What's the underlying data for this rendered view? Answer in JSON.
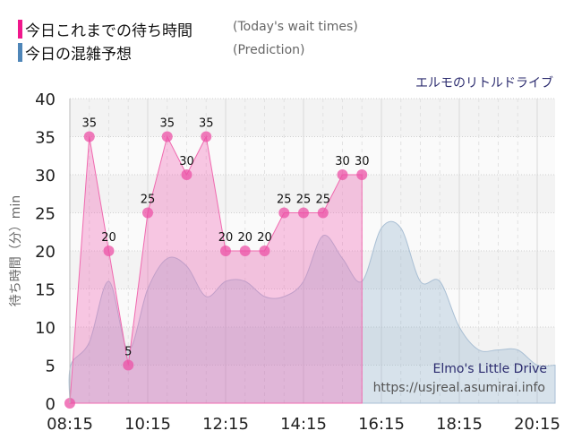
{
  "legend": {
    "items": [
      {
        "label_ja": "今日これまでの待ち時間",
        "label_en": "(Today's wait times)",
        "color": "#f0188c"
      },
      {
        "label_ja": "今日の混雑予想",
        "label_en": "(Prediction)",
        "color": "#4f86b8"
      }
    ]
  },
  "subtitle": "エルモのリトルドライブ",
  "credits": {
    "name": "Elmo's Little Drive",
    "url": "https://usjreal.asumirai.info"
  },
  "chart_data": {
    "type": "area",
    "title": "エルモのリトルドライブ",
    "xlabel": "",
    "ylabel": "待ち時間（分）min",
    "ylim": [
      0,
      40
    ],
    "yticks": [
      0,
      5,
      10,
      15,
      20,
      25,
      30,
      35,
      40
    ],
    "xticks": [
      "08:15",
      "10:15",
      "12:15",
      "14:15",
      "16:15",
      "18:15",
      "20:15"
    ],
    "grid": true,
    "legend_position": "top-left",
    "series": [
      {
        "name": "今日これまでの待ち時間 (Today's wait times)",
        "color": "#f0188c",
        "x": [
          "08:15",
          "08:45",
          "09:15",
          "09:45",
          "10:15",
          "10:45",
          "11:15",
          "11:45",
          "12:15",
          "12:45",
          "13:15",
          "13:45",
          "14:15",
          "14:45",
          "15:15",
          "15:45"
        ],
        "values": [
          0,
          35,
          20,
          5,
          25,
          35,
          30,
          35,
          20,
          20,
          20,
          25,
          25,
          25,
          30,
          30
        ]
      },
      {
        "name": "今日の混雑予想 (Prediction)",
        "color": "#4f86b8",
        "x": [
          "08:15",
          "08:45",
          "09:15",
          "09:45",
          "10:15",
          "10:45",
          "11:15",
          "11:45",
          "12:15",
          "12:45",
          "13:15",
          "13:45",
          "14:15",
          "14:45",
          "15:15",
          "15:45",
          "16:15",
          "16:45",
          "17:15",
          "17:45",
          "18:15",
          "18:45",
          "19:15",
          "19:45",
          "20:15",
          "20:45"
        ],
        "values": [
          5,
          8,
          16,
          7,
          15,
          19,
          18,
          14,
          16,
          16,
          14,
          14,
          16,
          22,
          19,
          16,
          23,
          23,
          16,
          16,
          10,
          7,
          7,
          7,
          5,
          5
        ]
      }
    ]
  }
}
